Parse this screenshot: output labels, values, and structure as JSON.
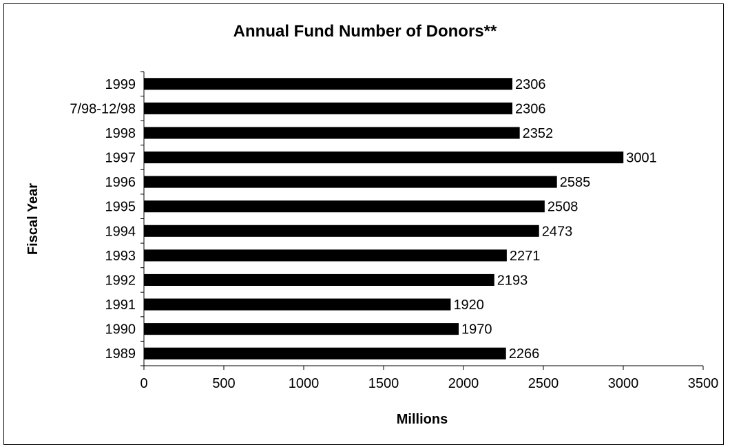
{
  "chart_data": {
    "type": "bar",
    "orientation": "horizontal",
    "title": "Annual Fund Number of Donors**",
    "xlabel": "Millions",
    "ylabel": "Fiscal Year",
    "categories": [
      "1999",
      "7/98-12/98",
      "1998",
      "1997",
      "1996",
      "1995",
      "1994",
      "1993",
      "1992",
      "1991",
      "1990",
      "1989"
    ],
    "values": [
      2306,
      2306,
      2352,
      3001,
      2585,
      2508,
      2473,
      2271,
      2193,
      1920,
      1970,
      2266
    ],
    "xlim": [
      0,
      3500
    ],
    "xticks": [
      0,
      500,
      1000,
      1500,
      2000,
      2500,
      3000,
      3500
    ],
    "grid": false,
    "legend": "none",
    "bar_color": "#000000"
  }
}
